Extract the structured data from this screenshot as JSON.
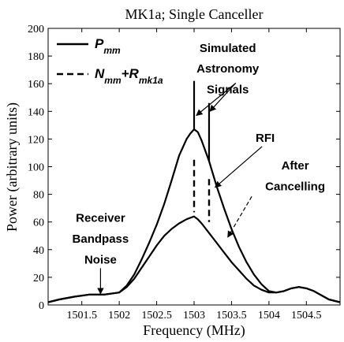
{
  "chart_data": {
    "type": "line",
    "title": "MK1a; Single Canceller",
    "xlabel": "Frequency (MHz)",
    "ylabel": "Power (arbitrary units)",
    "xlim": [
      1501.05,
      1504.95
    ],
    "ylim": [
      0,
      200
    ],
    "xticks": [
      "1501.5",
      "1502",
      "1502.5",
      "1503",
      "1503.5",
      "1504",
      "1504.5"
    ],
    "yticks": [
      "0",
      "20",
      "40",
      "60",
      "80",
      "100",
      "120",
      "140",
      "160",
      "180",
      "200"
    ],
    "grid": false,
    "legend_position": "top-left",
    "legend": [
      {
        "base": "P",
        "sub": "mm",
        "style": "solid"
      },
      {
        "base": "N",
        "sub": "mm",
        "mid": "+R",
        "sub2": "mk1a",
        "style": "dashed"
      }
    ],
    "series": [
      {
        "style": "solid",
        "x": [
          1501.05,
          1501.2,
          1501.4,
          1501.6,
          1501.8,
          1502.0,
          1502.1,
          1502.2,
          1502.3,
          1502.4,
          1502.5,
          1502.6,
          1502.7,
          1502.8,
          1502.9,
          1502.95,
          1503.0,
          1503.05,
          1503.1,
          1503.2,
          1503.3,
          1503.4,
          1503.5,
          1503.6,
          1503.7,
          1503.8,
          1503.9,
          1504.0,
          1504.1,
          1504.2,
          1504.3,
          1504.4,
          1504.5,
          1504.6,
          1504.7,
          1504.8,
          1504.95
        ],
        "y": [
          2,
          4,
          6,
          7.5,
          7.5,
          9,
          14,
          22,
          33,
          45,
          58,
          73,
          90,
          108,
          120,
          124,
          127,
          125,
          119,
          104,
          86,
          70,
          55,
          42,
          31,
          22,
          15,
          10,
          9,
          10,
          12,
          13,
          12,
          10,
          7,
          4,
          2
        ]
      },
      {
        "style": "solid",
        "x": [
          1501.05,
          1501.2,
          1501.4,
          1501.6,
          1501.8,
          1502.0,
          1502.1,
          1502.2,
          1502.3,
          1502.4,
          1502.5,
          1502.6,
          1502.7,
          1502.8,
          1502.9,
          1502.95,
          1503.0,
          1503.05,
          1503.1,
          1503.2,
          1503.3,
          1503.4,
          1503.5,
          1503.6,
          1503.7,
          1503.8,
          1503.9,
          1504.0,
          1504.1,
          1504.2,
          1504.3,
          1504.4,
          1504.5,
          1504.6,
          1504.7,
          1504.8,
          1504.95
        ],
        "y": [
          2,
          4,
          6,
          7.5,
          7.5,
          9,
          13,
          19,
          27,
          35,
          43,
          50,
          55,
          59,
          62,
          63,
          64,
          62,
          59,
          52,
          45,
          38,
          31,
          25,
          19,
          14,
          11,
          9,
          9,
          10,
          12,
          13,
          12,
          10,
          7,
          4,
          2
        ]
      }
    ],
    "spikes": [
      {
        "x": 1503.0,
        "y": 162
      },
      {
        "x": 1503.2,
        "y": 146
      }
    ],
    "dashed_segments": [
      {
        "x": 1503.0,
        "y0": 105,
        "y1": 67
      },
      {
        "x": 1503.2,
        "y0": 91,
        "y1": 60
      }
    ],
    "annotations": [
      {
        "lines": [
          "Simulated",
          "Astronomy",
          "Signals"
        ],
        "x": 1503.45,
        "y": [
          183,
          168,
          153
        ],
        "arrows": [
          {
            "x": 1503.03,
            "y": 137
          },
          {
            "x": 1503.21,
            "y": 140
          }
        ]
      },
      {
        "lines": [
          "RFI"
        ],
        "x": 1503.95,
        "y": [
          118
        ],
        "arrows": [
          {
            "x": 1503.28,
            "y": 85
          }
        ]
      },
      {
        "lines": [
          "After",
          "Cancelling"
        ],
        "x": 1504.35,
        "y": [
          98,
          83
        ],
        "arrows": [
          {
            "x": 1503.45,
            "y": 49,
            "style": "dashed"
          }
        ]
      },
      {
        "lines": [
          "Receiver",
          "Bandpass",
          "Noise"
        ],
        "x": 1501.75,
        "y": [
          60,
          45,
          30
        ],
        "arrows": [
          {
            "x": 1501.75,
            "y": 8
          }
        ]
      }
    ]
  }
}
